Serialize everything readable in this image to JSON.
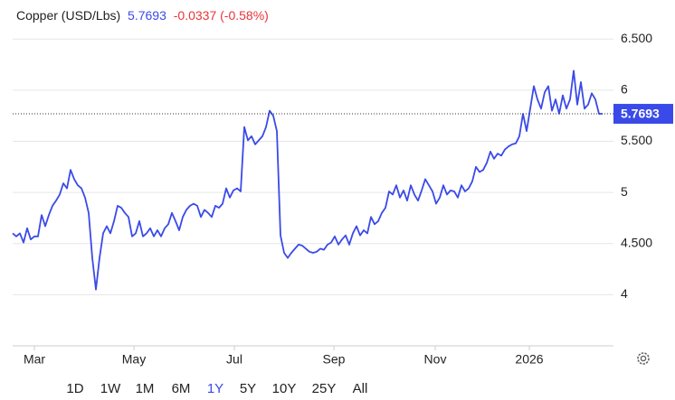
{
  "chart_data": {
    "type": "line",
    "title": "Copper (USD/Lbs)",
    "change": "-0.0337 (-0.58%)",
    "series": [
      {
        "color": "#3a4ae8",
        "values": [
          4.6,
          4.57,
          4.6,
          4.51,
          4.65,
          4.54,
          4.57,
          4.57,
          4.78,
          4.67,
          4.78,
          4.87,
          4.92,
          4.98,
          5.09,
          5.04,
          5.22,
          5.13,
          5.07,
          5.04,
          4.95,
          4.8,
          4.36,
          4.05,
          4.36,
          4.6,
          4.67,
          4.6,
          4.72,
          4.87,
          4.85,
          4.8,
          4.76,
          4.57,
          4.6,
          4.72,
          4.57,
          4.6,
          4.65,
          4.57,
          4.63,
          4.57,
          4.65,
          4.69,
          4.8,
          4.72,
          4.63,
          4.76,
          4.83,
          4.87,
          4.89,
          4.87,
          4.76,
          4.83,
          4.8,
          4.76,
          4.87,
          4.85,
          4.89,
          5.04,
          4.95,
          5.02,
          5.04,
          5.01,
          5.64,
          5.51,
          5.55,
          5.47,
          5.51,
          5.55,
          5.64,
          5.8,
          5.75,
          5.6,
          4.58,
          4.41,
          4.36,
          4.41,
          4.45,
          4.49,
          4.48,
          4.45,
          4.42,
          4.41,
          4.42,
          4.45,
          4.44,
          4.49,
          4.51,
          4.57,
          4.49,
          4.54,
          4.58,
          4.49,
          4.6,
          4.67,
          4.58,
          4.63,
          4.6,
          4.76,
          4.69,
          4.72,
          4.8,
          4.85,
          5.01,
          4.98,
          5.07,
          4.95,
          5.02,
          4.92,
          5.07,
          4.98,
          4.92,
          5.02,
          5.13,
          5.07,
          5.01,
          4.89,
          4.95,
          5.07,
          4.98,
          5.02,
          5.01,
          4.95,
          5.07,
          5.01,
          5.04,
          5.11,
          5.25,
          5.2,
          5.22,
          5.29,
          5.4,
          5.33,
          5.38,
          5.36,
          5.42,
          5.45,
          5.47,
          5.48,
          5.55,
          5.77,
          5.6,
          5.82,
          6.04,
          5.91,
          5.82,
          5.98,
          6.04,
          5.8,
          5.91,
          5.77,
          5.95,
          5.82,
          5.91,
          6.19,
          5.86,
          6.08,
          5.82,
          5.86,
          5.97,
          5.91,
          5.77,
          5.7693
        ]
      }
    ],
    "xlim": [
      0,
      166
    ],
    "xticks": [
      {
        "value": 6,
        "label": "Mar"
      },
      {
        "value": 33.5,
        "label": "May"
      },
      {
        "value": 61.25,
        "label": "Jul"
      },
      {
        "value": 88.75,
        "label": "Sep"
      },
      {
        "value": 116.75,
        "label": "Nov"
      },
      {
        "value": 142.75,
        "label": "2026"
      }
    ],
    "ylim": [
      3.5,
      6.75
    ],
    "yticks": [
      4,
      {
        "value": 4.5,
        "label": "4.500"
      },
      5,
      {
        "value": 5.5,
        "label": "5.500"
      },
      6,
      {
        "value": 6.5,
        "label": "6.500"
      }
    ],
    "grid": true,
    "ranges": [
      "1D",
      "1W",
      "1M",
      "6M",
      "1Y",
      "5Y",
      "10Y",
      "25Y",
      "All"
    ],
    "active_range": "1Y"
  }
}
